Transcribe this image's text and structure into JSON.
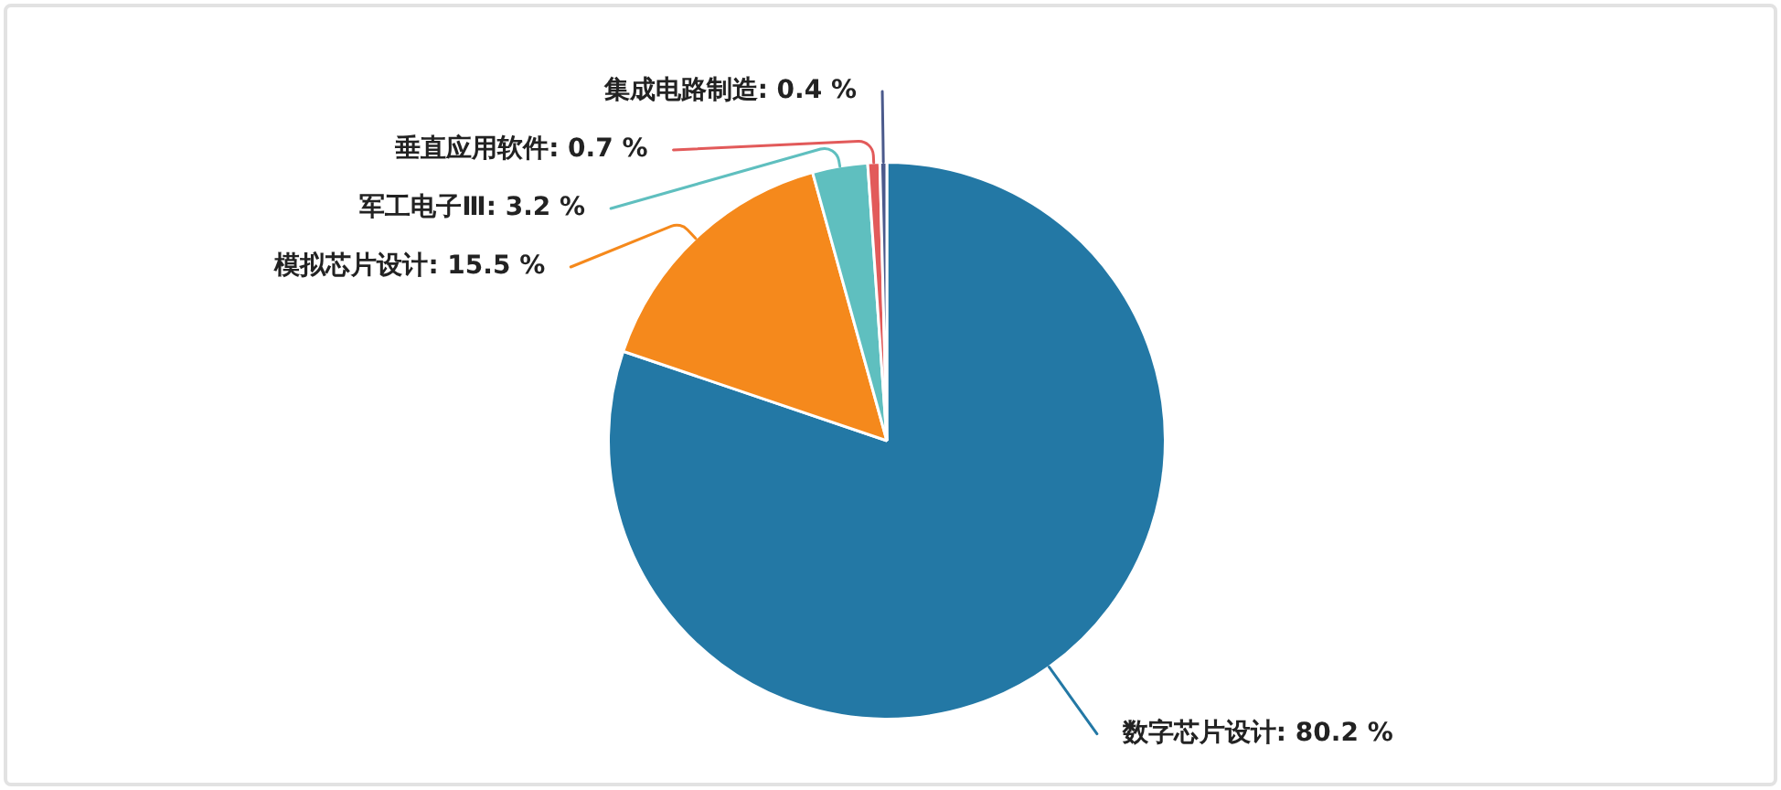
{
  "chart_data": {
    "type": "pie",
    "categories": [
      "数字芯片设计",
      "模拟芯片设计",
      "军工电子Ⅲ",
      "垂直应用软件",
      "集成电路制造"
    ],
    "values": [
      80.2,
      15.5,
      3.2,
      0.7,
      0.4
    ],
    "colors": [
      "#2378a5",
      "#f5891c",
      "#5fbfbf",
      "#e25a5a",
      "#4b5a8c"
    ],
    "value_labels": [
      "80.2 %",
      "15.5 %",
      "3.2 %",
      "0.7 %",
      "0.4 %"
    ]
  }
}
